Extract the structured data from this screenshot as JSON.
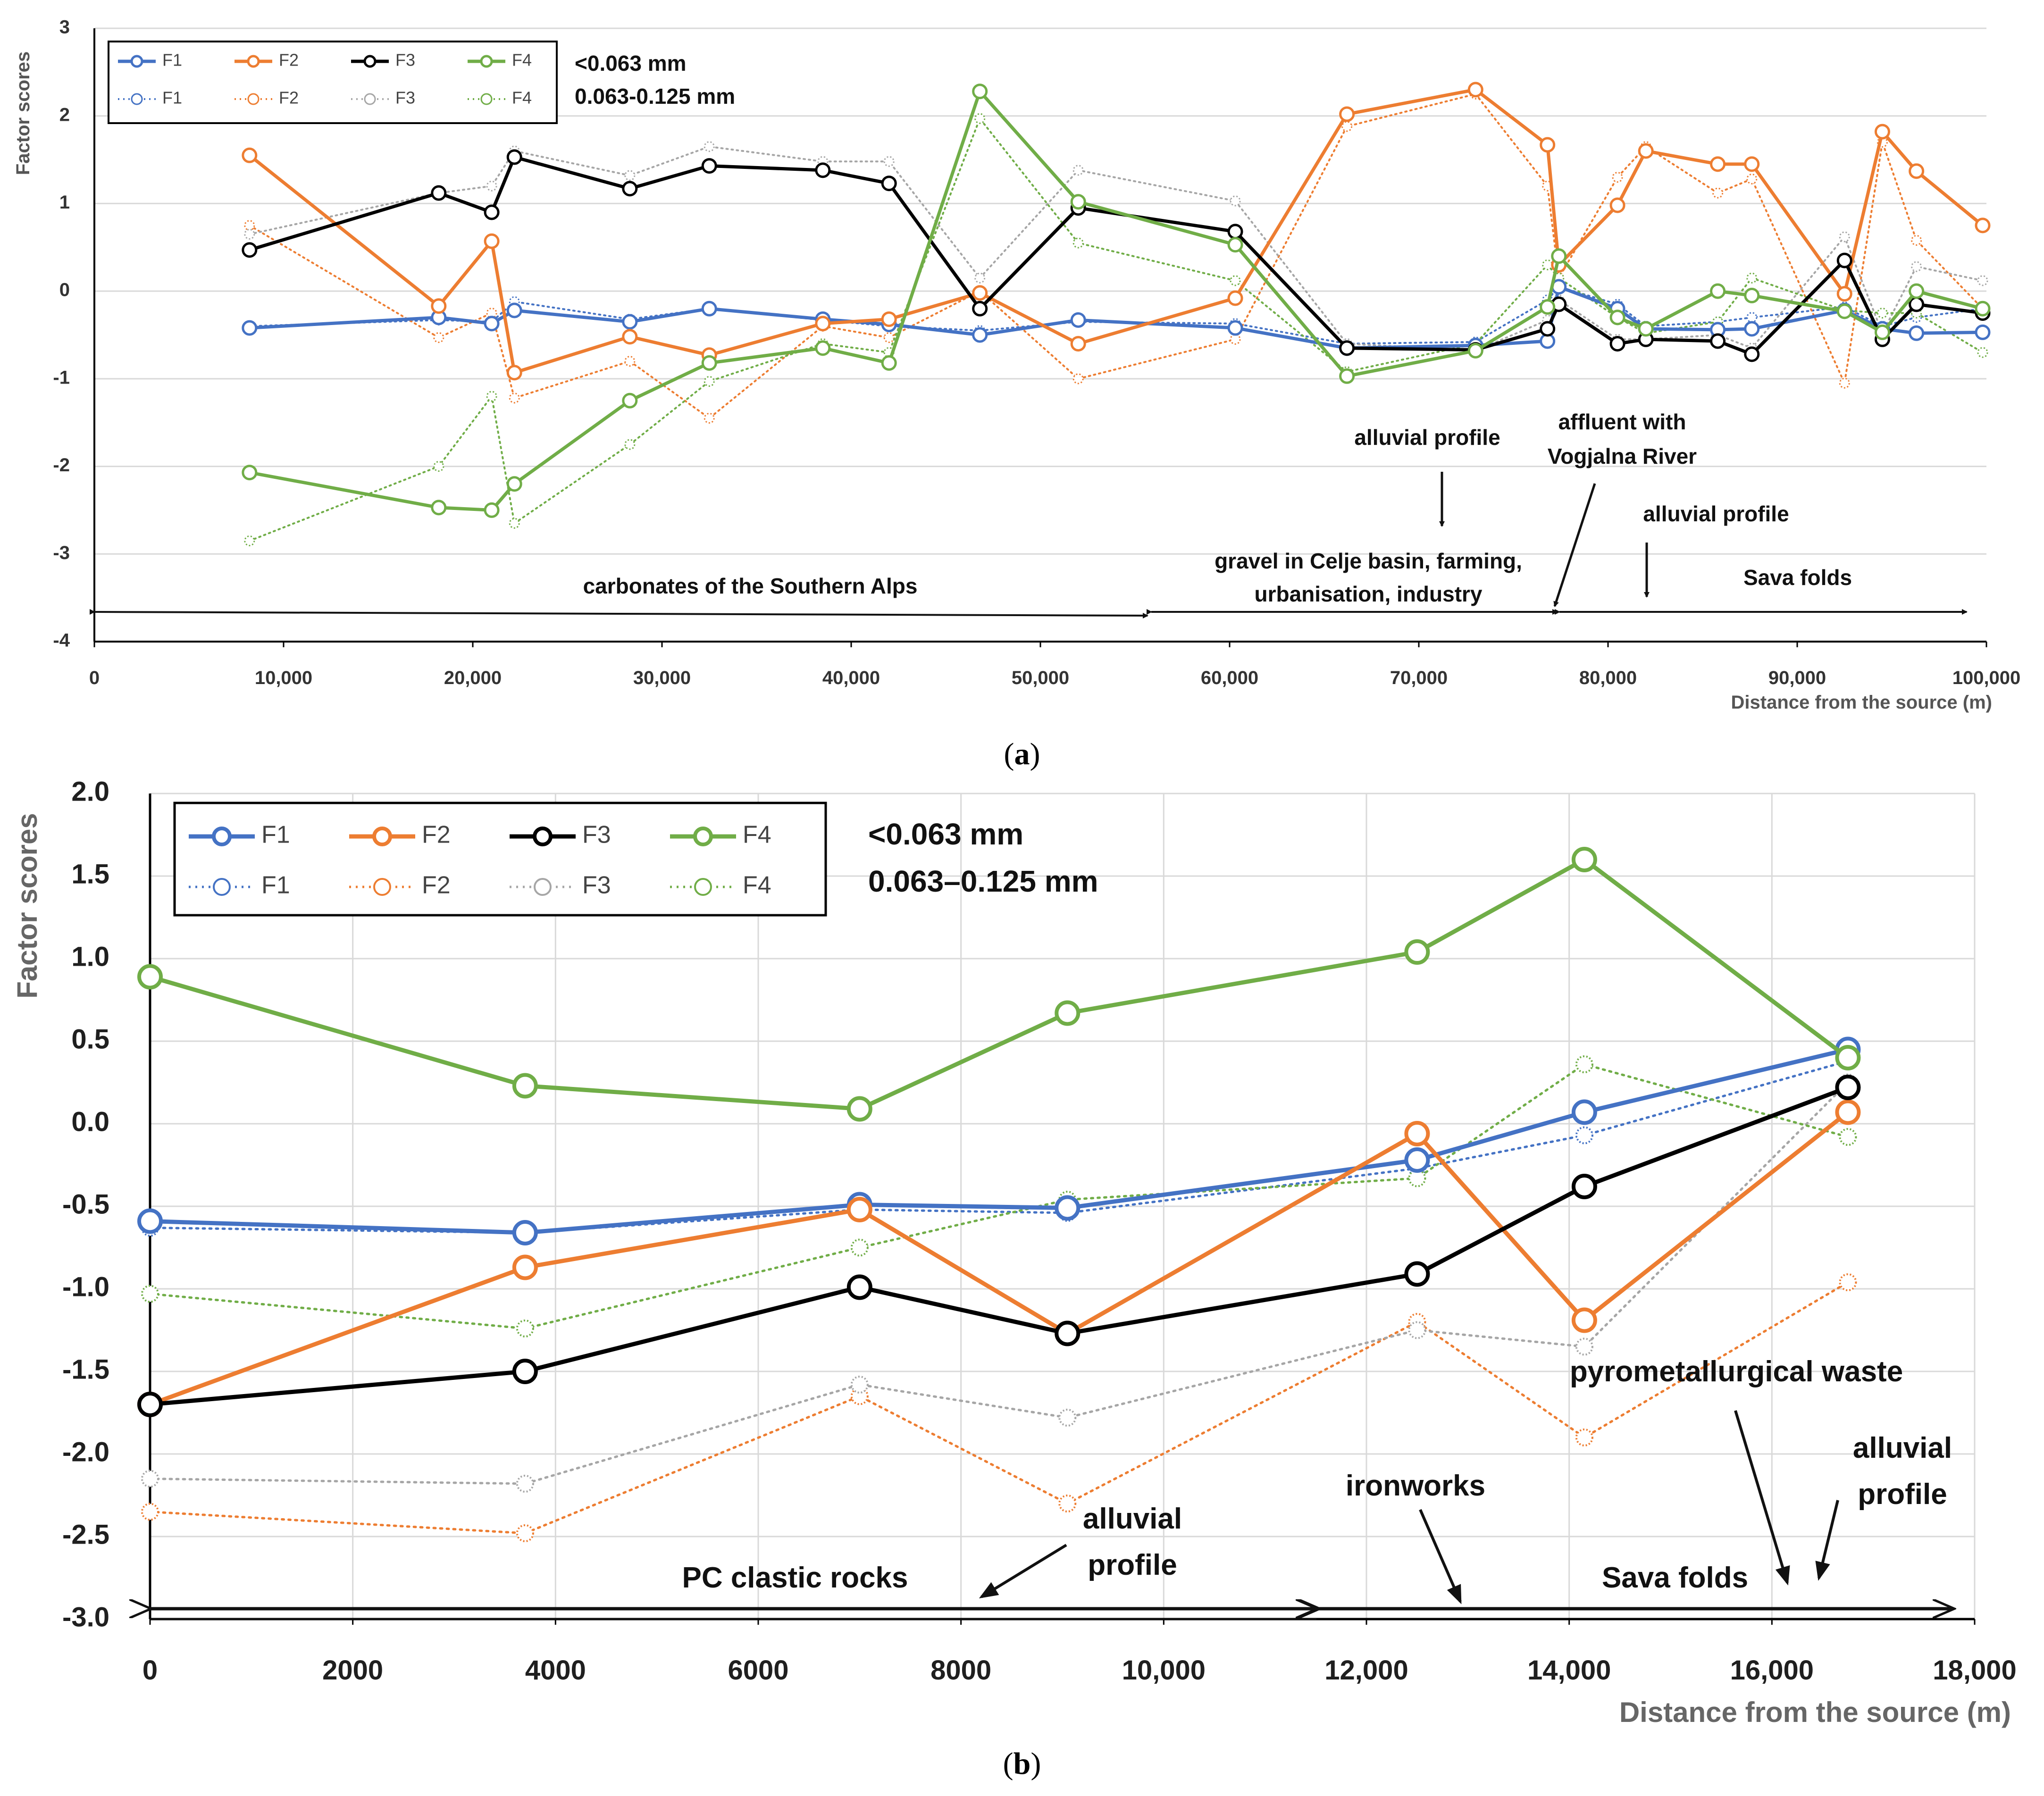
{
  "colors": {
    "F1": "#4472c4",
    "F2": "#ed7d31",
    "F3": "#000000",
    "F3_fine": "#a6a6a6",
    "F4": "#70ad47",
    "grid": "#d9d9d9",
    "axis": "#000000"
  },
  "chart_data": [
    {
      "id": "a",
      "type": "line",
      "caption_open": "(",
      "caption_letter": "a",
      "caption_close": ")",
      "xlabel": "Distance from the source (m)",
      "ylabel": "Factor scores",
      "xlim": [
        0,
        100000
      ],
      "ylim": [
        -4,
        3
      ],
      "xticks": [
        0,
        10000,
        20000,
        30000,
        40000,
        50000,
        60000,
        70000,
        80000,
        90000,
        100000
      ],
      "xtick_labels": [
        "0",
        "10,000",
        "20,000",
        "30,000",
        "40,000",
        "50,000",
        "60,000",
        "70,000",
        "80,000",
        "90,000",
        "100,000"
      ],
      "yticks": [
        -4,
        -3,
        -2,
        -1,
        0,
        1,
        2,
        3
      ],
      "ytick_labels": [
        "-4",
        "-3",
        "-2",
        "-1",
        "0",
        "1",
        "2",
        "3"
      ],
      "legend": {
        "coarse_title": "<0.063 mm",
        "fine_title": "0.063-0.125 mm",
        "entries": [
          "F1",
          "F2",
          "F3",
          "F4"
        ]
      },
      "x": [
        8200,
        18200,
        21000,
        22200,
        28300,
        32500,
        38500,
        42000,
        46800,
        52000,
        60300,
        66200,
        73000,
        76800,
        77400,
        80500,
        82000,
        85800,
        87600,
        92500,
        94500,
        96300,
        99800
      ],
      "series": [
        {
          "name": "F1",
          "fraction": "<0.063 mm",
          "values": [
            -0.42,
            -0.3,
            -0.37,
            -0.22,
            -0.35,
            -0.2,
            -0.32,
            -0.38,
            -0.5,
            -0.33,
            -0.42,
            -0.65,
            -0.62,
            -0.57,
            0.05,
            -0.2,
            -0.43,
            -0.44,
            -0.43,
            -0.22,
            -0.43,
            -0.48,
            -0.47
          ]
        },
        {
          "name": "F2",
          "fraction": "<0.063 mm",
          "values": [
            1.55,
            -0.17,
            0.57,
            -0.93,
            -0.52,
            -0.73,
            -0.37,
            -0.32,
            -0.02,
            -0.6,
            -0.08,
            2.02,
            2.3,
            1.67,
            0.3,
            0.98,
            1.6,
            1.45,
            1.45,
            -0.03,
            1.82,
            1.37,
            0.75
          ]
        },
        {
          "name": "F3",
          "fraction": "<0.063 mm",
          "values": [
            0.47,
            1.12,
            0.9,
            1.53,
            1.17,
            1.43,
            1.38,
            1.23,
            -0.2,
            0.95,
            0.68,
            -0.65,
            -0.67,
            -0.43,
            -0.15,
            -0.6,
            -0.55,
            -0.57,
            -0.72,
            0.35,
            -0.55,
            -0.15,
            -0.25
          ]
        },
        {
          "name": "F4",
          "fraction": "<0.063 mm",
          "values": [
            -2.07,
            -2.47,
            -2.5,
            -2.2,
            -1.25,
            -0.82,
            -0.65,
            -0.82,
            2.28,
            1.02,
            0.53,
            -0.97,
            -0.68,
            -0.18,
            0.4,
            -0.3,
            -0.43,
            0.0,
            -0.05,
            -0.23,
            -0.47,
            0.0,
            -0.2
          ]
        },
        {
          "name": "F1",
          "fraction": "0.063-0.125 mm",
          "values": [
            -0.4,
            -0.33,
            -0.35,
            -0.12,
            -0.32,
            -0.2,
            -0.33,
            -0.4,
            -0.45,
            -0.35,
            -0.37,
            -0.6,
            -0.58,
            -0.1,
            0.05,
            -0.15,
            -0.4,
            -0.35,
            -0.3,
            -0.18,
            -0.4,
            -0.3,
            -0.2
          ]
        },
        {
          "name": "F2",
          "fraction": "0.063-0.125 mm",
          "values": [
            0.75,
            -0.53,
            -0.25,
            -1.22,
            -0.8,
            -1.45,
            -0.4,
            -0.53,
            0.0,
            -1.0,
            -0.55,
            1.88,
            2.25,
            1.2,
            0.15,
            1.3,
            1.65,
            1.12,
            1.28,
            -1.05,
            1.7,
            0.58,
            -0.2
          ]
        },
        {
          "name": "F3",
          "fraction": "0.063-0.125 mm",
          "values": [
            0.65,
            1.12,
            1.2,
            1.6,
            1.32,
            1.65,
            1.48,
            1.48,
            0.15,
            1.38,
            1.03,
            -0.6,
            -0.68,
            -0.33,
            -0.1,
            -0.55,
            -0.55,
            -0.5,
            -0.65,
            0.62,
            -0.48,
            0.28,
            0.12
          ]
        },
        {
          "name": "F4",
          "fraction": "0.063-0.125 mm",
          "values": [
            -2.85,
            -2.0,
            -1.2,
            -2.65,
            -1.75,
            -1.03,
            -0.6,
            -0.7,
            1.97,
            0.55,
            0.12,
            -0.92,
            -0.6,
            0.3,
            0.15,
            -0.3,
            -0.48,
            -0.35,
            0.15,
            -0.22,
            -0.25,
            -0.25,
            -0.7
          ]
        }
      ],
      "annotations": [
        {
          "lines": [
            "carbonates of the Southern Alps"
          ]
        },
        {
          "lines": [
            "alluvial profile"
          ]
        },
        {
          "lines": [
            "affluent with",
            "Vogjalna River"
          ]
        },
        {
          "lines": [
            "alluvial profile"
          ]
        },
        {
          "lines": [
            "gravel in Celje basin, farming,",
            "urbanisation, industry"
          ]
        },
        {
          "lines": [
            "Sava folds"
          ]
        }
      ]
    },
    {
      "id": "b",
      "type": "line",
      "caption_open": "(",
      "caption_letter": "b",
      "caption_close": ")",
      "xlabel": "Distance from the source (m)",
      "ylabel": "Factor scores",
      "xlim": [
        0,
        18000
      ],
      "ylim": [
        -3.0,
        2.0
      ],
      "xticks": [
        0,
        2000,
        4000,
        6000,
        8000,
        10000,
        12000,
        14000,
        16000,
        18000
      ],
      "xtick_labels": [
        "0",
        "2000",
        "4000",
        "6000",
        "8000",
        "10,000",
        "12,000",
        "14,000",
        "16,000",
        "18,000"
      ],
      "yticks": [
        -3.0,
        -2.5,
        -2.0,
        -1.5,
        -1.0,
        -0.5,
        0.0,
        0.5,
        1.0,
        1.5,
        2.0
      ],
      "ytick_labels": [
        "-3.0",
        "-2.5",
        "-2.0",
        "-1.5",
        "-1.0",
        "-0.5",
        "0.0",
        "0.5",
        "1.0",
        "1.5",
        "2.0"
      ],
      "legend": {
        "coarse_title": "<0.063 mm",
        "fine_title": "0.063–0.125 mm",
        "entries": [
          "F1",
          "F2",
          "F3",
          "F4"
        ]
      },
      "x": [
        0,
        3700,
        7000,
        9050,
        12500,
        14150,
        16750
      ],
      "series": [
        {
          "name": "F1",
          "fraction": "<0.063 mm",
          "values": [
            -0.59,
            -0.66,
            -0.49,
            -0.51,
            -0.22,
            0.07,
            0.45
          ]
        },
        {
          "name": "F2",
          "fraction": "<0.063 mm",
          "values": [
            -1.7,
            -0.87,
            -0.52,
            -1.27,
            -0.06,
            -1.19,
            0.07
          ]
        },
        {
          "name": "F3",
          "fraction": "<0.063 mm",
          "values": [
            -1.7,
            -1.5,
            -0.99,
            -1.27,
            -0.91,
            -0.38,
            0.22
          ]
        },
        {
          "name": "F4",
          "fraction": "<0.063 mm",
          "values": [
            0.89,
            0.23,
            0.09,
            0.67,
            1.04,
            1.6,
            0.4
          ]
        },
        {
          "name": "F1",
          "fraction": "0.063–0.125 mm",
          "values": [
            -0.63,
            -0.66,
            -0.52,
            -0.54,
            -0.27,
            -0.07,
            0.38
          ]
        },
        {
          "name": "F2",
          "fraction": "0.063–0.125 mm",
          "values": [
            -2.35,
            -2.48,
            -1.65,
            -2.3,
            -1.2,
            -1.9,
            -0.96
          ]
        },
        {
          "name": "F3",
          "fraction": "0.063–0.125 mm",
          "values": [
            -2.15,
            -2.18,
            -1.58,
            -1.78,
            -1.25,
            -1.35,
            0.25
          ]
        },
        {
          "name": "F4",
          "fraction": "0.063–0.125 mm",
          "values": [
            -1.03,
            -1.24,
            -0.75,
            -0.46,
            -0.33,
            0.36,
            -0.08
          ]
        }
      ],
      "annotations": [
        {
          "lines": [
            "PC clastic rocks"
          ]
        },
        {
          "lines": [
            "alluvial",
            "profile"
          ]
        },
        {
          "lines": [
            "ironworks"
          ]
        },
        {
          "lines": [
            "pyrometallurgical  waste"
          ]
        },
        {
          "lines": [
            "alluvial",
            "profile"
          ]
        },
        {
          "lines": [
            "Sava folds"
          ]
        }
      ]
    }
  ]
}
